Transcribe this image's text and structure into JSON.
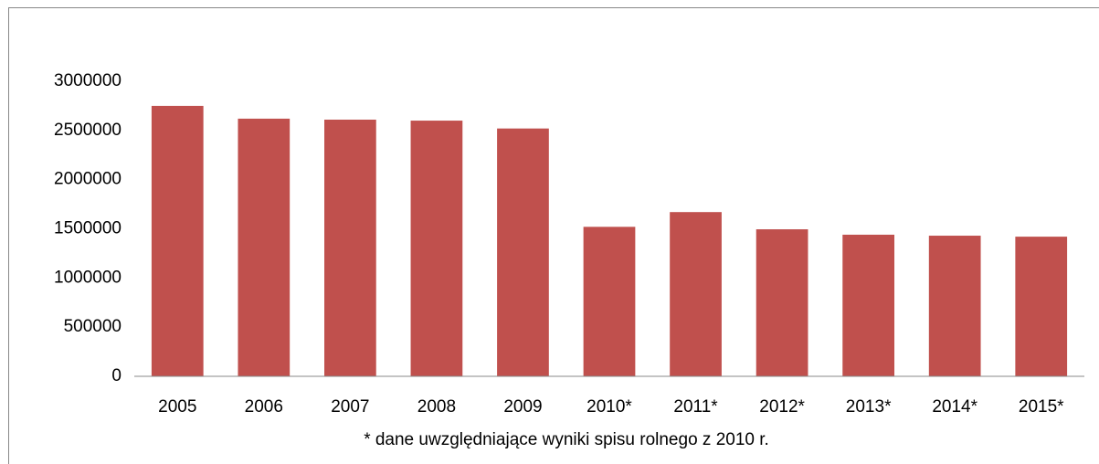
{
  "chart_data": {
    "type": "bar",
    "categories": [
      "2005",
      "2006",
      "2007",
      "2008",
      "2009",
      "2010*",
      "2011*",
      "2012*",
      "2013*",
      "2014*",
      "2015*"
    ],
    "values": [
      2750000,
      2620000,
      2610000,
      2600000,
      2520000,
      1520000,
      1670000,
      1495000,
      1440000,
      1430000,
      1420000
    ],
    "color": "#c0504d",
    "ylim": [
      0,
      3000000
    ],
    "yticks": [
      0,
      500000,
      1000000,
      1500000,
      2000000,
      2500000,
      3000000
    ],
    "grid": false,
    "annotation": "* dane uwzględniające wyniki spisu rolnego z 2010 r."
  }
}
